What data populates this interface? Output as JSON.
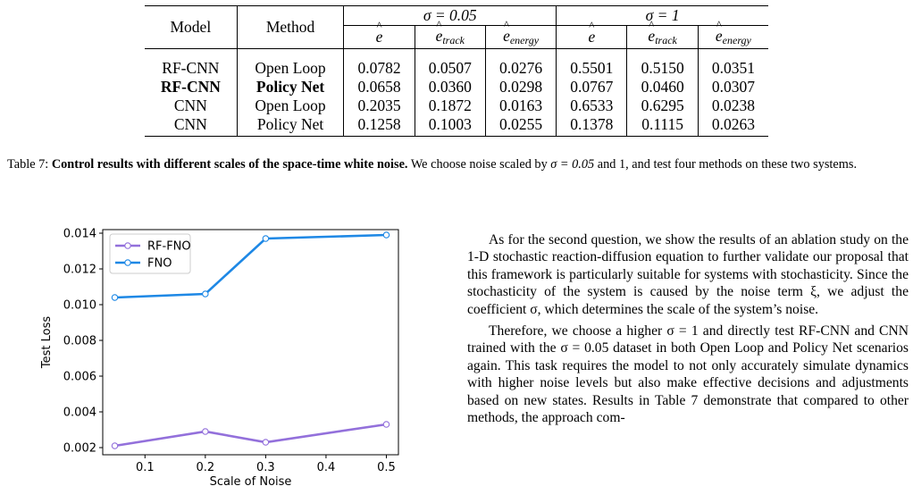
{
  "table": {
    "col_model": "Model",
    "col_method": "Method",
    "group1": "σ = 0.05",
    "group2": "σ = 1",
    "sub_cols": [
      {
        "base": "e",
        "sub": ""
      },
      {
        "base": "e",
        "sub": "track"
      },
      {
        "base": "e",
        "sub": "energy"
      },
      {
        "base": "e",
        "sub": ""
      },
      {
        "base": "e",
        "sub": "track"
      },
      {
        "base": "e",
        "sub": "energy"
      }
    ],
    "rows": [
      {
        "model": "RF-CNN",
        "method": "Open Loop",
        "bold": false,
        "values": [
          "0.0782",
          "0.0507",
          "0.0276",
          "0.5501",
          "0.5150",
          "0.0351"
        ]
      },
      {
        "model": "RF-CNN",
        "method": "Policy Net",
        "bold": true,
        "values": [
          "0.0658",
          "0.0360",
          "0.0298",
          "0.0767",
          "0.0460",
          "0.0307"
        ]
      },
      {
        "model": "CNN",
        "method": "Open Loop",
        "bold": false,
        "values": [
          "0.2035",
          "0.1872",
          "0.0163",
          "0.6533",
          "0.6295",
          "0.0238"
        ]
      },
      {
        "model": "CNN",
        "method": "Policy Net",
        "bold": false,
        "values": [
          "0.1258",
          "0.1003",
          "0.0255",
          "0.1378",
          "0.1115",
          "0.0263"
        ]
      }
    ]
  },
  "caption": {
    "label": "Table 7:",
    "bold_text": "Control results with different scales of the space-time white noise.",
    "rest_pre": " We choose noise scaled by ",
    "sigma_a": "σ = 0.05",
    "mid": " and 1, and test four methods on these two systems."
  },
  "chart_data": {
    "type": "line",
    "xlabel": "Scale of Noise",
    "ylabel": "Test Loss",
    "x": [
      0.05,
      0.2,
      0.3,
      0.5
    ],
    "xlim": [
      0.03,
      0.52
    ],
    "ylim": [
      0.0016,
      0.0142
    ],
    "xticks": [
      0.1,
      0.2,
      0.3,
      0.4,
      0.5
    ],
    "yticks": [
      0.002,
      0.004,
      0.006,
      0.008,
      0.01,
      0.012,
      0.014
    ],
    "xtick_labels": [
      "0.1",
      "0.2",
      "0.3",
      "0.4",
      "0.5"
    ],
    "ytick_labels": [
      "0.002",
      "0.004",
      "0.006",
      "0.008",
      "0.010",
      "0.012",
      "0.014"
    ],
    "legend_position": "top-left",
    "series": [
      {
        "name": "RF-FNO",
        "color": "#9370db",
        "values": [
          0.0021,
          0.0029,
          0.0023,
          0.0033
        ]
      },
      {
        "name": "FNO",
        "color": "#1e88e5",
        "values": [
          0.0104,
          0.0106,
          0.0137,
          0.0139
        ]
      }
    ]
  },
  "body": {
    "p1": "As for the second question, we show the results of an ablation study on the 1-D stochastic reaction-diffusion equation to further validate our proposal that this framework is particularly suitable for systems with stochasticity. Since the stochasticity of the system is caused by the noise term ξ, we adjust the coefficient σ, which determines the scale of the system’s noise.",
    "p2": "Therefore, we choose a higher σ = 1 and directly test RF-CNN and CNN trained with the σ = 0.05 dataset in both Open Loop and Policy Net scenarios again. This task requires the model to not only accurately simulate dynamics with higher noise levels but also make effective decisions and adjustments based on new states. Results in Table 7 demonstrate that compared to other methods, the approach com-"
  }
}
